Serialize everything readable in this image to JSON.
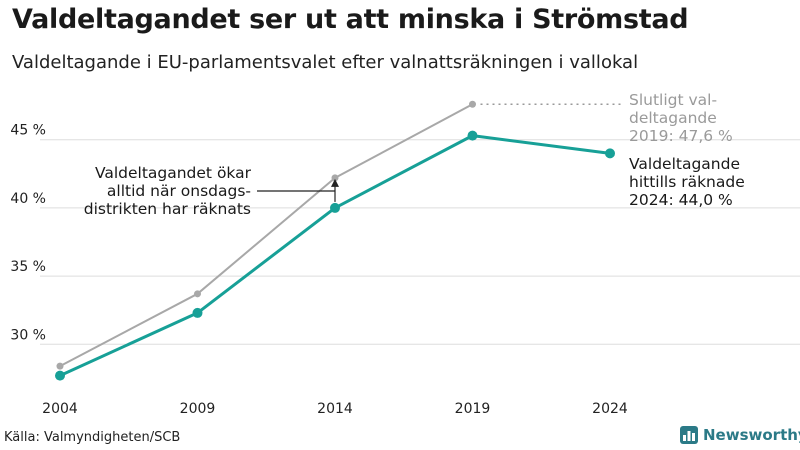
{
  "title": "Valdeltagandet ser ut att minska i Strömstad",
  "subtitle": "Valdeltagande i EU-parlamentsvalet efter valnattsräkningen i vallokal",
  "source": "Källa: Valmyndigheten/SCB",
  "brand": "Newsworthy",
  "colors": {
    "final": "#a8a8a8",
    "counted": "#17a097",
    "grid": "#dddddd",
    "annotation": "#222222",
    "brand": "#2b7a87"
  },
  "chart_data": {
    "type": "line",
    "x": [
      2004,
      2009,
      2014,
      2019,
      2024
    ],
    "x_tick_labels": [
      "2004",
      "2009",
      "2014",
      "2019",
      "2024"
    ],
    "y_ticks": [
      30,
      35,
      40,
      45
    ],
    "y_tick_labels": [
      "30 %",
      "35 %",
      "40 %",
      "45 %"
    ],
    "ylim": [
      26.5,
      48.5
    ],
    "series": [
      {
        "name": "Slutligt valdeltagande",
        "color": "#a8a8a8",
        "x": [
          2004,
          2009,
          2014,
          2019
        ],
        "values": [
          28.4,
          33.7,
          42.2,
          47.6
        ],
        "label_lines": [
          "Slutligt val-",
          "deltagande",
          "2019: 47,6 %"
        ]
      },
      {
        "name": "Valdeltagande hittills räknade",
        "color": "#17a097",
        "x": [
          2004,
          2009,
          2014,
          2019,
          2024
        ],
        "values": [
          27.7,
          32.3,
          40.0,
          45.3,
          44.0
        ],
        "label_lines": [
          "Valdeltagande",
          "hittills räknade",
          "2024: 44,0 %"
        ]
      }
    ],
    "annotation": {
      "lines": [
        "Valdeltagandet ökar",
        "alltid när onsdags-",
        "distrikten har räknats"
      ],
      "x": 2014,
      "from": 40.0,
      "to": 42.2
    }
  }
}
